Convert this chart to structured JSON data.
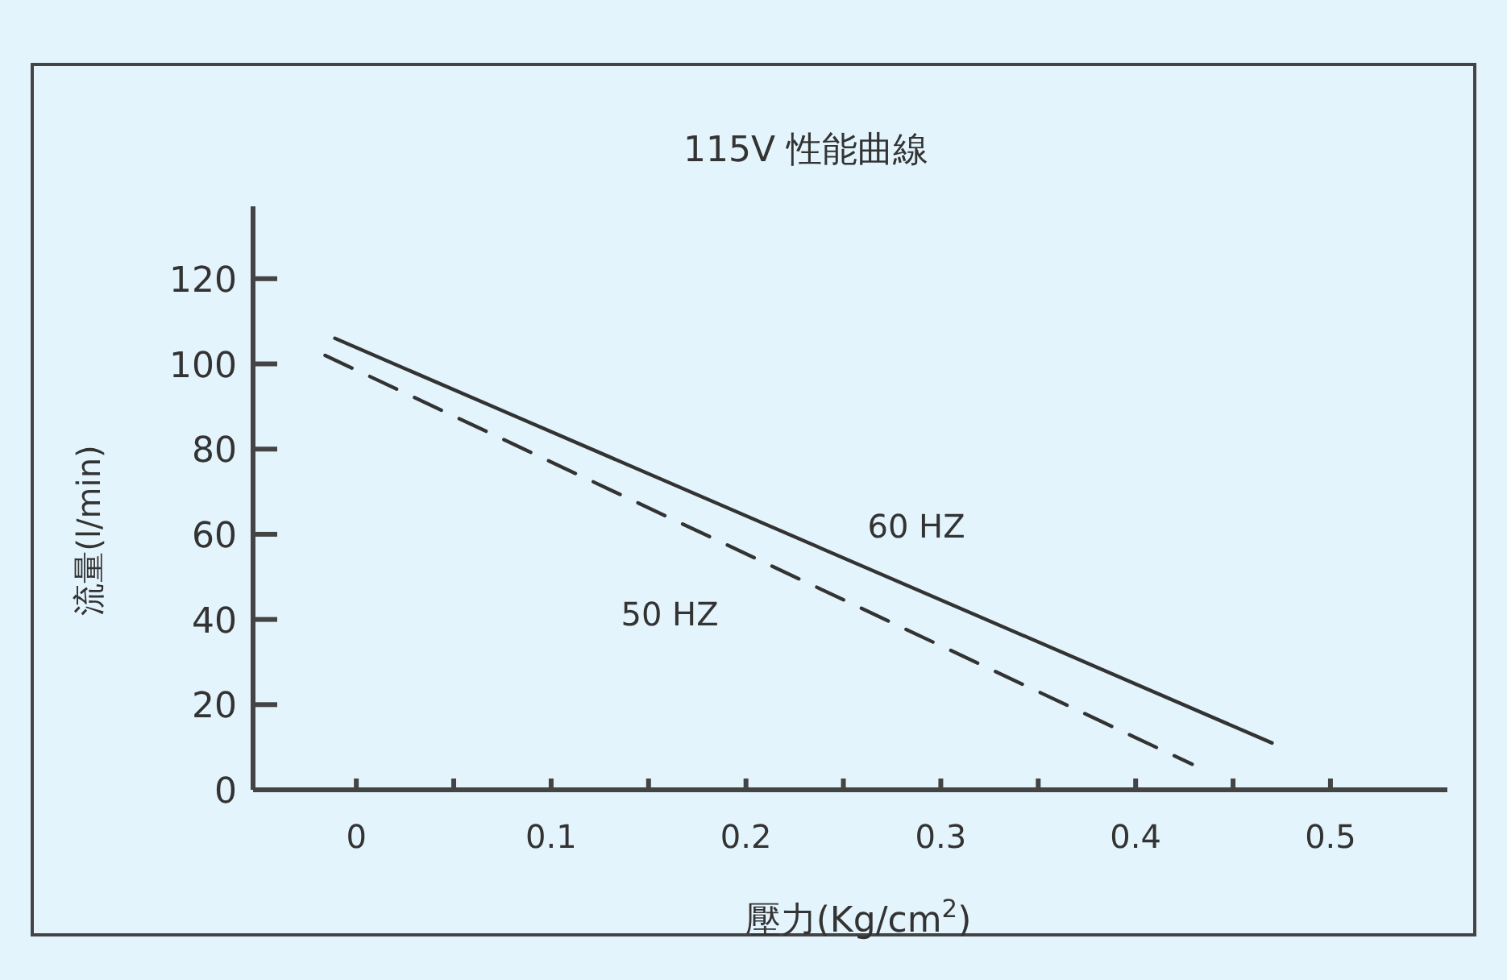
{
  "chart_data": {
    "type": "line",
    "title": "115V 性能曲線",
    "xlabel": "壓力(Kg/cm$^{2}$)",
    "ylabel": "流量(l/min)",
    "xlim": [
      -0.053,
      0.56
    ],
    "ylim": [
      0,
      137
    ],
    "xticks": [
      0,
      {
        "value": 0.05,
        "label": null
      },
      {
        "value": 0.1,
        "label": "0.1"
      },
      {
        "value": 0.15,
        "label": null
      },
      {
        "value": 0.2,
        "label": "0.2"
      },
      {
        "value": 0.25,
        "label": null
      },
      {
        "value": 0.3,
        "label": "0.3"
      },
      {
        "value": 0.35,
        "label": null
      },
      {
        "value": 0.4,
        "label": "0.4"
      },
      {
        "value": 0.45,
        "label": null
      },
      {
        "value": 0.5,
        "label": "0.5"
      }
    ],
    "yticks": [
      0,
      20,
      40,
      60,
      80,
      100,
      120
    ],
    "grid": false,
    "marker": "none",
    "series": [
      {
        "name": "60 HZ",
        "color": "#333333",
        "x": [
          -0.011,
          0.47
        ],
        "values": [
          106,
          11
        ],
        "line_style": "solid"
      },
      {
        "name": "50 HZ",
        "color": "#333333",
        "x": [
          -0.016,
          0.429
        ],
        "values": [
          102,
          6
        ],
        "line_style": "dashed"
      }
    ]
  }
}
